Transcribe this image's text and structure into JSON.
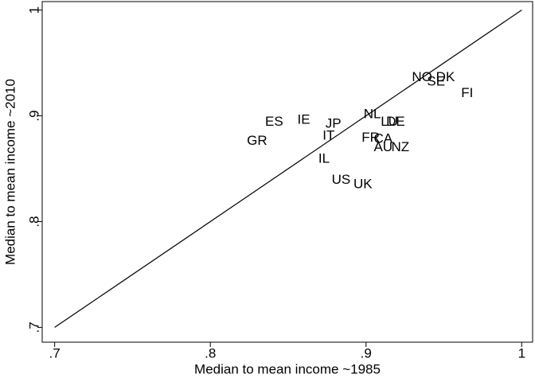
{
  "chart_data": {
    "type": "scatter",
    "x_label": "Median to mean income ~1985",
    "y_label": "Median to mean income ~2010",
    "labels": [
      "GR",
      "ES",
      "IE",
      "JP",
      "IT",
      "IL",
      "US",
      "UK",
      "NL",
      "LU",
      "DE",
      "FR",
      "CA",
      "AU",
      "NZ",
      "NO",
      "DK",
      "SE",
      "FI"
    ],
    "x": [
      0.83,
      0.841,
      0.86,
      0.879,
      0.876,
      0.873,
      0.884,
      0.898,
      0.904,
      0.915,
      0.919,
      0.903,
      0.911,
      0.911,
      0.922,
      0.936,
      0.951,
      0.945,
      0.965
    ],
    "y": [
      0.876,
      0.894,
      0.896,
      0.892,
      0.881,
      0.859,
      0.839,
      0.835,
      0.901,
      0.894,
      0.894,
      0.879,
      0.878,
      0.87,
      0.87,
      0.936,
      0.936,
      0.932,
      0.921
    ],
    "reference_line": {
      "x": [
        0.7,
        1
      ],
      "y": [
        0.7,
        1
      ]
    },
    "xlim": [
      0.692,
      1.007
    ],
    "ylim": [
      0.686,
      1.008
    ],
    "xticks": [
      {
        "value": 0.7,
        "label": ".7"
      },
      {
        "value": 0.8,
        "label": ".8"
      },
      {
        "value": 0.9,
        "label": ".9"
      },
      1
    ],
    "yticks": [
      {
        "value": 0.7,
        "label": ".7"
      },
      {
        "value": 0.8,
        "label": ".8"
      },
      {
        "value": 0.9,
        "label": ".9"
      },
      1
    ],
    "color": "#000000"
  }
}
